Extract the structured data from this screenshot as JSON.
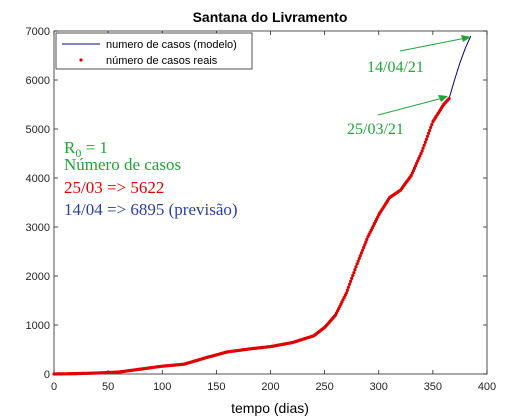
{
  "chart_data": {
    "type": "line",
    "title": "Santana do Livramento",
    "xlabel": "tempo (dias)",
    "ylabel": "",
    "xlim": [
      0,
      400
    ],
    "ylim": [
      0,
      7000
    ],
    "xticks": [
      0,
      50,
      100,
      150,
      200,
      250,
      300,
      350,
      400
    ],
    "yticks": [
      0,
      1000,
      2000,
      3000,
      4000,
      5000,
      6000,
      7000
    ],
    "grid": false,
    "legend_position": "top-left",
    "legend": {
      "model_label": "numero de casos (modelo)",
      "real_label": "número de casos reais"
    },
    "series": [
      {
        "name": "numero de casos (modelo)",
        "color": "#00008b",
        "style": "line",
        "x": [
          0,
          20,
          40,
          60,
          80,
          100,
          120,
          140,
          160,
          180,
          200,
          220,
          240,
          250,
          260,
          270,
          280,
          290,
          300,
          310,
          320,
          330,
          340,
          350,
          360,
          365,
          370,
          375,
          380,
          385
        ],
        "y": [
          0,
          8,
          20,
          40,
          100,
          160,
          200,
          330,
          450,
          510,
          560,
          640,
          780,
          950,
          1200,
          1650,
          2250,
          2800,
          3250,
          3600,
          3750,
          4050,
          4550,
          5150,
          5500,
          5622,
          6000,
          6350,
          6650,
          6895
        ]
      },
      {
        "name": "número de casos reais",
        "color": "#e00000",
        "style": "points",
        "x": [
          0,
          20,
          40,
          60,
          80,
          100,
          120,
          140,
          160,
          180,
          200,
          220,
          240,
          250,
          260,
          270,
          280,
          290,
          300,
          310,
          320,
          330,
          340,
          350,
          360,
          365
        ],
        "y": [
          0,
          8,
          20,
          40,
          100,
          160,
          200,
          330,
          450,
          510,
          560,
          640,
          780,
          950,
          1200,
          1650,
          2250,
          2800,
          3250,
          3600,
          3750,
          4050,
          4550,
          5150,
          5500,
          5622
        ]
      }
    ],
    "annotations": {
      "r0_text": "R",
      "r0_sub": "0",
      "r0_rest": " = 1",
      "cases_heading": "Número de casos",
      "real_line": "25/03 => 5622",
      "forecast_line": "14/04 => 6895 (previsão)",
      "date1_label": "25/03/21",
      "date1_point": [
        365,
        5622
      ],
      "date2_label": "14/04/21",
      "date2_point": [
        385,
        6895
      ],
      "label_color_green": "#22a33a",
      "label_color_red": "#e00000",
      "label_color_blue": "#2b3fa8"
    }
  }
}
